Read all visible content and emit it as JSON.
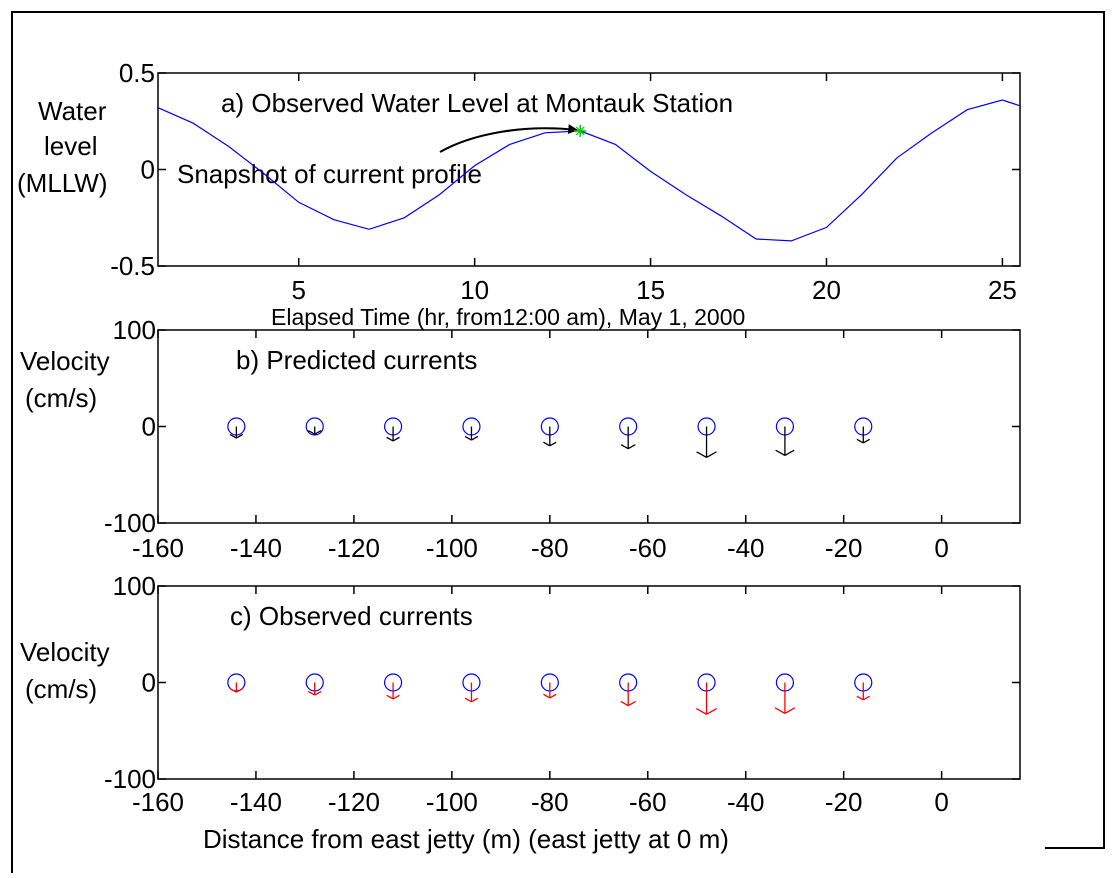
{
  "chart_data": [
    {
      "type": "line",
      "title": "a) Observed Water Level at Montauk Station",
      "ylabel_lines": [
        "Water",
        "level",
        "(MLLW)"
      ],
      "xlabel": "Elapsed Time (hr, from12:00 am), May 1, 2000",
      "annotation": "Snapshot of current profile",
      "snapshot_point": {
        "x": 13,
        "y": 0.2
      },
      "xlim": [
        1,
        25.5
      ],
      "ylim": [
        -0.5,
        0.5
      ],
      "xticks": [
        5,
        10,
        15,
        20,
        25
      ],
      "yticks": [
        -0.5,
        0,
        0.5
      ],
      "ytick_labels": [
        "-0.5",
        "0",
        "0.5"
      ],
      "series": [
        {
          "x": [
            1,
            2,
            3,
            4,
            5,
            6,
            7,
            8,
            9,
            10,
            11,
            12,
            13,
            14,
            15,
            16,
            17,
            18,
            19,
            20,
            21,
            22,
            23,
            24,
            25,
            25.5
          ],
          "y": [
            0.32,
            0.24,
            0.12,
            -0.02,
            -0.17,
            -0.26,
            -0.31,
            -0.25,
            -0.13,
            0.02,
            0.13,
            0.19,
            0.2,
            0.13,
            -0.01,
            -0.13,
            -0.24,
            -0.36,
            -0.37,
            -0.3,
            -0.13,
            0.06,
            0.19,
            0.31,
            0.36,
            0.33
          ],
          "color": "#0000ff"
        }
      ]
    },
    {
      "type": "quiver",
      "title": "b) Predicted currents",
      "ylabel_lines": [
        "Velocity",
        "(cm/s)"
      ],
      "xlim": [
        -160,
        16
      ],
      "ylim": [
        -100,
        100
      ],
      "xticks": [
        -160,
        -140,
        -120,
        -100,
        -80,
        -60,
        -40,
        -20,
        0
      ],
      "yticks": [
        -100,
        0,
        100
      ],
      "x": [
        -144,
        -128,
        -112,
        -96,
        -80,
        -64,
        -48,
        -32,
        -16
      ],
      "v": [
        -12,
        -8,
        -15,
        -14,
        -20,
        -23,
        -32,
        -30,
        -17
      ],
      "arrow_color": "#000000",
      "marker_color": "#0000ff"
    },
    {
      "type": "quiver",
      "title": "c) Observed currents",
      "ylabel_lines": [
        "Velocity",
        "(cm/s)"
      ],
      "xlabel": "Distance from east jetty (m)  (east jetty at 0 m)",
      "xlim": [
        -160,
        16
      ],
      "ylim": [
        -100,
        100
      ],
      "xticks": [
        -160,
        -140,
        -120,
        -100,
        -80,
        -60,
        -40,
        -20,
        0
      ],
      "yticks": [
        -100,
        0,
        100
      ],
      "x": [
        -144,
        -128,
        -112,
        -96,
        -80,
        -64,
        -48,
        -32,
        -16
      ],
      "v": [
        -10,
        -13,
        -17,
        -20,
        -16,
        -24,
        -33,
        -32,
        -18
      ],
      "arrow_color": "#ff0000",
      "marker_color": "#0000ff"
    }
  ]
}
